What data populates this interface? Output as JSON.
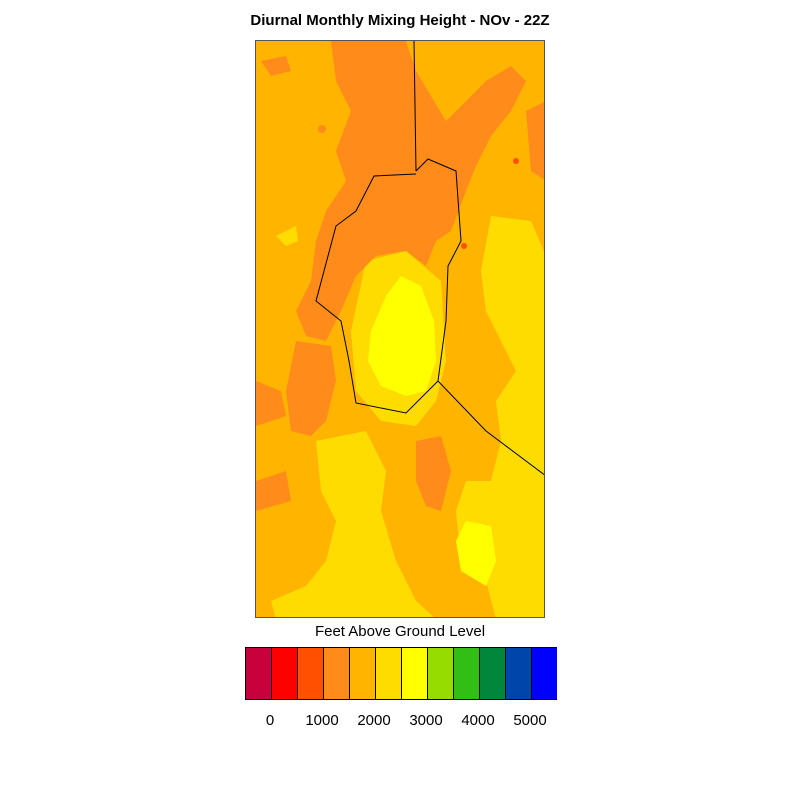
{
  "title": "Diurnal Monthly Mixing Height - NOv - 22Z",
  "legend": {
    "title": "Feet Above Ground Level",
    "colors": [
      "#c8003c",
      "#ff0000",
      "#ff5000",
      "#ff8c1a",
      "#ffb400",
      "#ffdc00",
      "#ffff00",
      "#96dc00",
      "#32be14",
      "#00873c",
      "#0046aa",
      "#0000ff"
    ],
    "tick_labels": [
      "0",
      "1000",
      "2000",
      "3000",
      "4000",
      "5000"
    ]
  },
  "map": {
    "field_colors": {
      "low_orange": "#ff8c1a",
      "orange_yellow": "#ffb400",
      "gold": "#ffdc00",
      "yellow": "#ffff00",
      "red_orange": "#ff5000"
    }
  }
}
